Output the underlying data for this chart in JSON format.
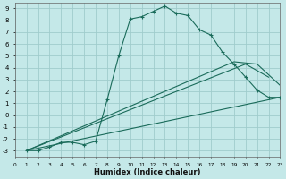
{
  "xlabel": "Humidex (Indice chaleur)",
  "background_color": "#c4e8e8",
  "grid_color": "#a0cccc",
  "line_color": "#1a6b5a",
  "xlim": [
    0,
    23
  ],
  "ylim": [
    -3.5,
    9.5
  ],
  "xticks": [
    0,
    1,
    2,
    3,
    4,
    5,
    6,
    7,
    8,
    9,
    10,
    11,
    12,
    13,
    14,
    15,
    16,
    17,
    18,
    19,
    20,
    21,
    22,
    23
  ],
  "yticks": [
    -3,
    -2,
    -1,
    0,
    1,
    2,
    3,
    4,
    5,
    6,
    7,
    8,
    9
  ],
  "main_line": {
    "x": [
      1,
      2,
      3,
      4,
      5,
      6,
      7,
      8,
      9,
      10,
      11,
      12,
      13,
      14,
      15,
      16,
      17,
      18,
      19,
      20,
      21,
      22,
      23
    ],
    "y": [
      -3,
      -3,
      -2.7,
      -2.3,
      -2.3,
      -2.5,
      -2.2,
      1.3,
      5.0,
      8.1,
      8.3,
      8.75,
      9.2,
      8.6,
      8.4,
      7.2,
      6.75,
      5.3,
      4.3,
      3.2,
      2.1,
      1.5,
      1.5
    ]
  },
  "extra_lines": [
    {
      "x": [
        1,
        23
      ],
      "y": [
        -3.0,
        1.5
      ]
    },
    {
      "x": [
        1,
        20,
        22
      ],
      "y": [
        -3.0,
        4.3,
        3.2
      ]
    },
    {
      "x": [
        1,
        19,
        21,
        23
      ],
      "y": [
        -3.0,
        4.5,
        4.3,
        2.5
      ]
    }
  ]
}
